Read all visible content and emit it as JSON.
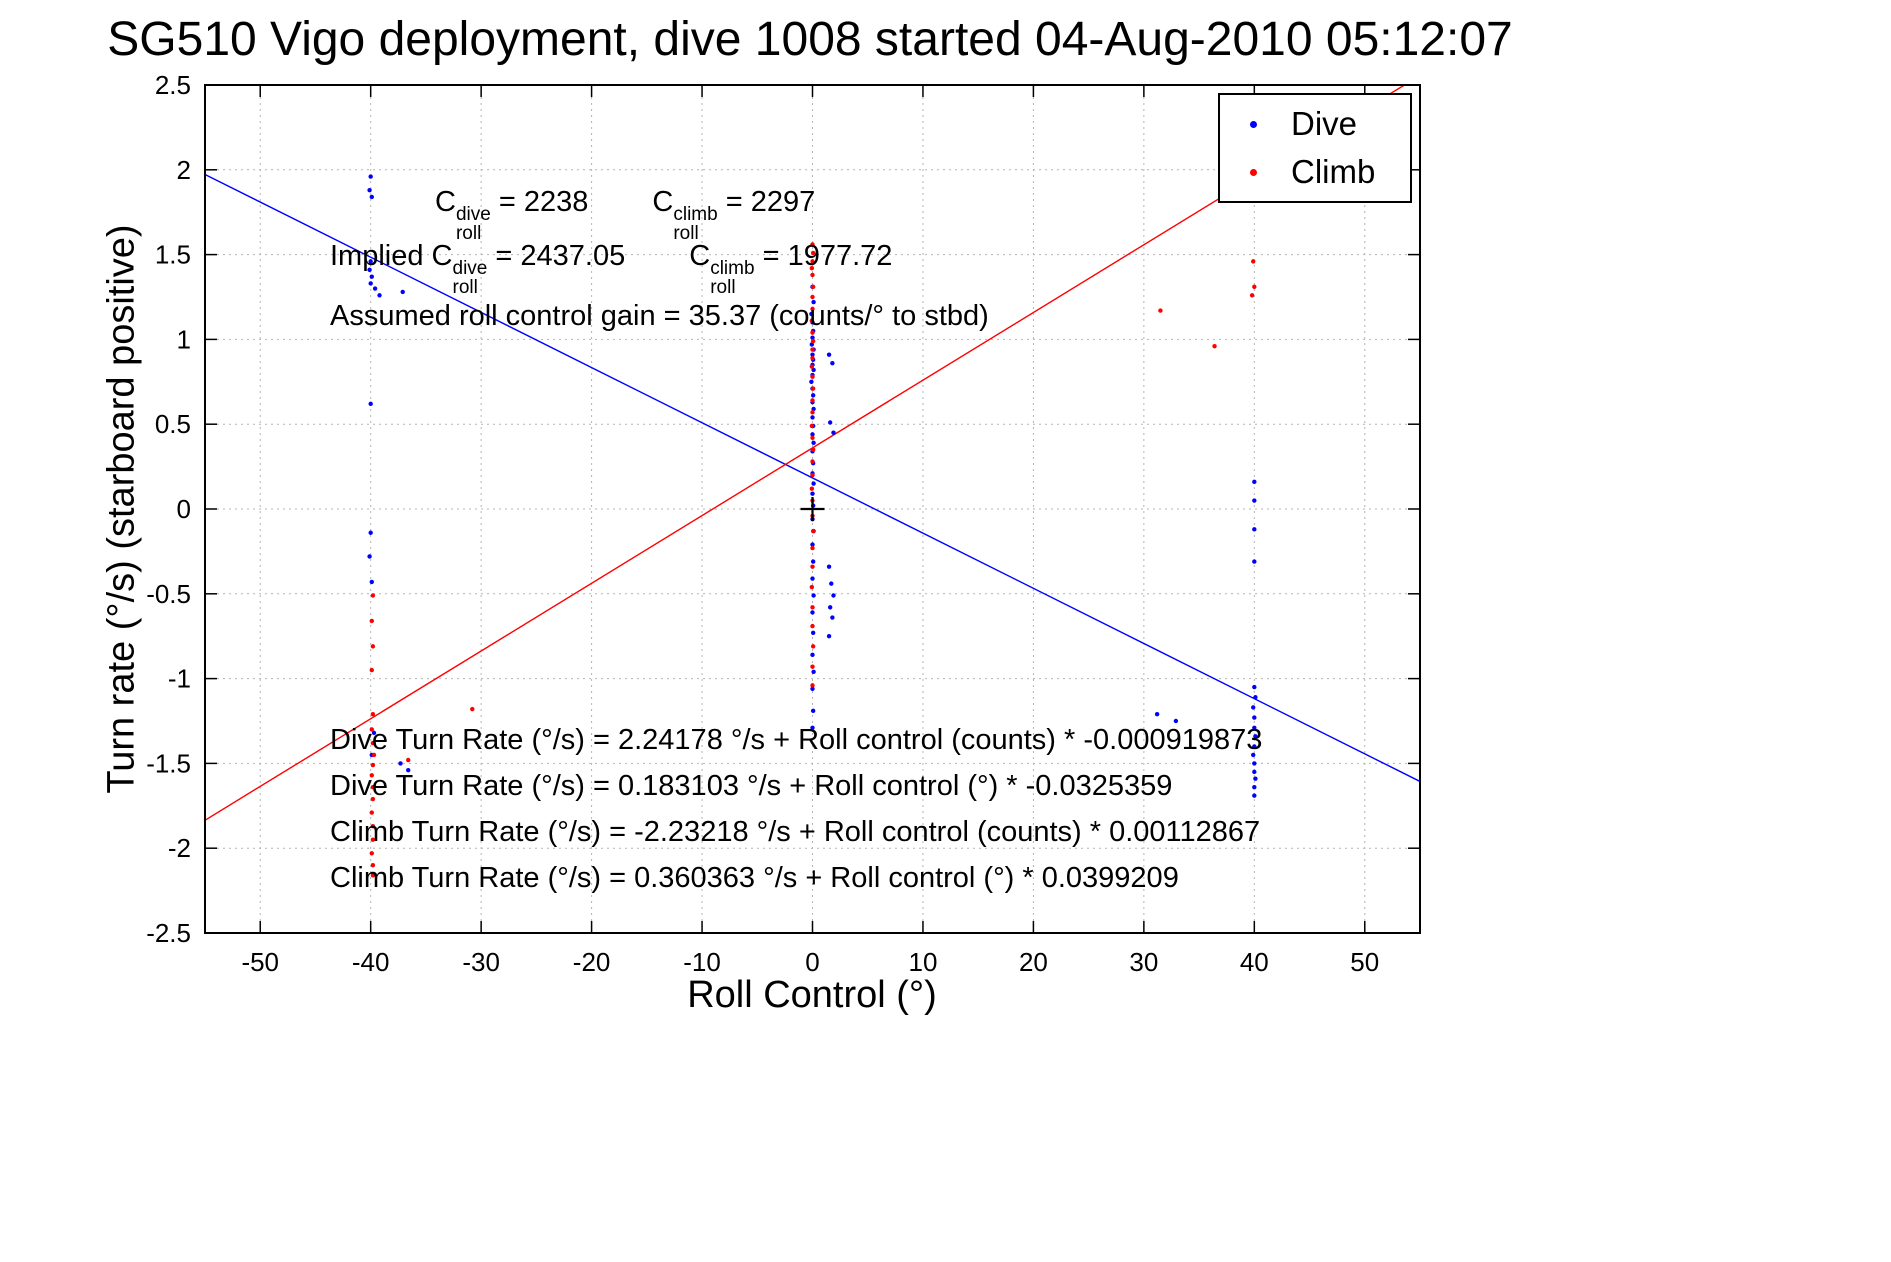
{
  "figure": {
    "title": "SG510 Vigo deployment, dive 1008 started 04-Aug-2010 05:12:07"
  },
  "annotations": {
    "c_symbol": "C",
    "roll_sub": "roll",
    "dive_sup": "dive",
    "climb_sup": "climb",
    "line1_dive_val": " = 2238",
    "line1_climb_val": " = 2297",
    "line2_prefix": "Implied ",
    "line2_dive_val": " = 2437.05",
    "line2_climb_val": " = 1977.72",
    "line3": "Assumed roll control gain = 35.37 (counts/° to stbd)",
    "eq1": "Dive Turn Rate (°/s) = 2.24178 °/s + Roll control (counts) * -0.000919873",
    "eq2": "Dive Turn Rate (°/s) = 0.183103 °/s + Roll control (°) * -0.0325359",
    "eq3": "Climb Turn Rate (°/s) = -2.23218 °/s + Roll control (counts) * 0.00112867",
    "eq4": "Climb Turn Rate (°/s) = 0.360363 °/s + Roll control (°) * 0.0399209"
  },
  "chart_data": {
    "type": "scatter",
    "title": "SG510 Vigo deployment, dive 1008 started 04-Aug-2010 05:12:07",
    "xlabel": "Roll Control (°)",
    "ylabel": "Turn rate (°/s) (starboard positive)",
    "xlim": [
      -55,
      55
    ],
    "ylim": [
      -2.5,
      2.5
    ],
    "xticks": [
      -50,
      -40,
      -30,
      -20,
      -10,
      0,
      10,
      20,
      30,
      40,
      50
    ],
    "yticks": [
      -2.5,
      -2,
      -1.5,
      -1,
      -0.5,
      0,
      0.5,
      1,
      1.5,
      2,
      2.5
    ],
    "grid": true,
    "legend": {
      "position": "top-right",
      "entries": [
        {
          "label": "Dive",
          "color": "#0000ff"
        },
        {
          "label": "Climb",
          "color": "#ff0000"
        }
      ]
    },
    "fit_lines": [
      {
        "name": "dive-fit-line",
        "color": "#0000ff",
        "intercept": 0.183103,
        "slope": -0.0325359
      },
      {
        "name": "climb-fit-line",
        "color": "#ff0000",
        "intercept": 0.360363,
        "slope": 0.0399209
      }
    ],
    "fit_params": {
      "c_roll_dive": 2238,
      "c_roll_climb": 2297,
      "implied_c_roll_dive": 2437.05,
      "implied_c_roll_climb": 1977.72,
      "roll_control_gain_counts_per_deg": 35.37,
      "dive_counts": {
        "intercept": 2.24178,
        "slope": -0.000919873
      },
      "dive_deg": {
        "intercept": 0.183103,
        "slope": -0.0325359
      },
      "climb_counts": {
        "intercept": -2.23218,
        "slope": 0.00112867
      },
      "climb_deg": {
        "intercept": 0.360363,
        "slope": 0.0399209
      }
    },
    "origin_marker": {
      "x": 0,
      "y": 0,
      "symbol": "+",
      "color": "#000000"
    },
    "series": [
      {
        "name": "Dive",
        "color": "#0000ff",
        "marker": "point",
        "points": [
          [
            -40,
            1.96
          ],
          [
            -40.1,
            1.88
          ],
          [
            -39.9,
            1.84
          ],
          [
            -40,
            1.46
          ],
          [
            -40.1,
            1.41
          ],
          [
            -39.9,
            1.37
          ],
          [
            -40,
            1.33
          ],
          [
            -39.6,
            1.3
          ],
          [
            -39.2,
            1.26
          ],
          [
            -37.1,
            1.28
          ],
          [
            -40,
            0.62
          ],
          [
            -40,
            -0.14
          ],
          [
            -40.1,
            -0.28
          ],
          [
            -39.9,
            -0.43
          ],
          [
            -39.7,
            -1.32
          ],
          [
            -39.9,
            -1.45
          ],
          [
            -37.3,
            -1.5
          ],
          [
            -36.6,
            -1.54
          ],
          [
            0,
            1.31
          ],
          [
            0.1,
            1.22
          ],
          [
            -0.1,
            1.15
          ],
          [
            0,
            1.1
          ],
          [
            0.06,
            1.05
          ],
          [
            0,
            1.01
          ],
          [
            -0.06,
            0.97
          ],
          [
            0.1,
            0.94
          ],
          [
            0,
            0.91
          ],
          [
            0.06,
            0.88
          ],
          [
            0,
            0.85
          ],
          [
            0.1,
            0.82
          ],
          [
            0,
            0.79
          ],
          [
            -0.1,
            0.75
          ],
          [
            0,
            0.71
          ],
          [
            0.06,
            0.67
          ],
          [
            0,
            0.63
          ],
          [
            0.1,
            0.59
          ],
          [
            0,
            0.54
          ],
          [
            0.06,
            0.49
          ],
          [
            0,
            0.44
          ],
          [
            0.1,
            0.39
          ],
          [
            0,
            0.34
          ],
          [
            0.06,
            0.27
          ],
          [
            0,
            0.21
          ],
          [
            0.1,
            0.15
          ],
          [
            0,
            0.09
          ],
          [
            0.06,
            0.02
          ],
          [
            0,
            -0.06
          ],
          [
            0.1,
            -0.13
          ],
          [
            0,
            -0.21
          ],
          [
            0.06,
            -0.31
          ],
          [
            0,
            -0.41
          ],
          [
            0.1,
            -0.51
          ],
          [
            0,
            -0.61
          ],
          [
            0.06,
            -0.73
          ],
          [
            0,
            -0.86
          ],
          [
            0.1,
            -0.96
          ],
          [
            0,
            -1.06
          ],
          [
            0.06,
            -1.19
          ],
          [
            0,
            -1.29
          ],
          [
            1.5,
            0.91
          ],
          [
            1.8,
            0.86
          ],
          [
            1.6,
            0.51
          ],
          [
            1.9,
            0.45
          ],
          [
            1.5,
            -0.34
          ],
          [
            1.7,
            -0.44
          ],
          [
            1.9,
            -0.51
          ],
          [
            1.6,
            -0.58
          ],
          [
            1.8,
            -0.64
          ],
          [
            1.5,
            -0.75
          ],
          [
            31.2,
            -1.21
          ],
          [
            32.9,
            -1.25
          ],
          [
            40,
            0.16
          ],
          [
            40,
            0.05
          ],
          [
            40,
            -0.12
          ],
          [
            40,
            -0.31
          ],
          [
            40,
            -1.05
          ],
          [
            40.1,
            -1.11
          ],
          [
            39.9,
            -1.17
          ],
          [
            40,
            -1.23
          ],
          [
            40,
            -1.29
          ],
          [
            40.1,
            -1.34
          ],
          [
            40,
            -1.4
          ],
          [
            39.9,
            -1.45
          ],
          [
            40,
            -1.5
          ],
          [
            40,
            -1.55
          ],
          [
            40.1,
            -1.59
          ],
          [
            40,
            -1.64
          ],
          [
            40,
            -1.69
          ]
        ]
      },
      {
        "name": "Climb",
        "color": "#ff0000",
        "marker": "point",
        "points": [
          [
            -39.8,
            -0.51
          ],
          [
            -39.9,
            -0.66
          ],
          [
            -39.8,
            -0.81
          ],
          [
            -39.9,
            -0.95
          ],
          [
            -39.8,
            -1.21
          ],
          [
            -39.9,
            -1.3
          ],
          [
            -39.8,
            -1.38
          ],
          [
            -39.7,
            -1.45
          ],
          [
            -39.8,
            -1.51
          ],
          [
            -39.9,
            -1.57
          ],
          [
            -39.8,
            -1.64
          ],
          [
            -39.8,
            -1.71
          ],
          [
            -39.9,
            -1.79
          ],
          [
            -39.8,
            -1.87
          ],
          [
            -39.8,
            -1.95
          ],
          [
            -39.9,
            -2.03
          ],
          [
            -39.8,
            -2.1
          ],
          [
            -39.8,
            -2.16
          ],
          [
            -36.6,
            -1.48
          ],
          [
            -30.8,
            -1.18
          ],
          [
            0,
            1.56
          ],
          [
            0.06,
            1.51
          ],
          [
            0,
            1.46
          ],
          [
            -0.06,
            1.42
          ],
          [
            0,
            1.38
          ],
          [
            0.06,
            1.31
          ],
          [
            0,
            1.25
          ],
          [
            0,
            1.18
          ],
          [
            -0.06,
            1.11
          ],
          [
            0,
            1.04
          ],
          [
            0.06,
            0.99
          ],
          [
            0,
            0.94
          ],
          [
            0,
            0.89
          ],
          [
            -0.06,
            0.84
          ],
          [
            0,
            0.78
          ],
          [
            0.06,
            0.71
          ],
          [
            0,
            0.64
          ],
          [
            0,
            0.57
          ],
          [
            -0.06,
            0.49
          ],
          [
            0,
            0.42
          ],
          [
            0.06,
            0.35
          ],
          [
            0,
            0.28
          ],
          [
            0,
            0.2
          ],
          [
            -0.06,
            0.12
          ],
          [
            0,
            0.05
          ],
          [
            0,
            -0.04
          ],
          [
            0.06,
            -0.13
          ],
          [
            0,
            -0.23
          ],
          [
            0,
            -0.34
          ],
          [
            -0.06,
            -0.46
          ],
          [
            0,
            -0.58
          ],
          [
            0,
            -0.69
          ],
          [
            0.06,
            -0.81
          ],
          [
            0,
            -0.93
          ],
          [
            0,
            -1.04
          ],
          [
            31.5,
            1.17
          ],
          [
            36.4,
            0.96
          ],
          [
            39.9,
            1.46
          ],
          [
            40,
            1.31
          ],
          [
            39.8,
            1.26
          ]
        ]
      }
    ]
  }
}
